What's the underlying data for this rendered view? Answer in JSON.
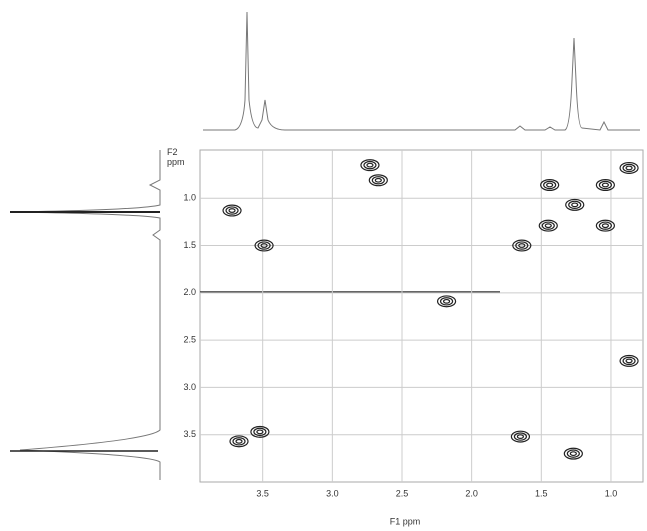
{
  "chart_data": {
    "type": "scatter",
    "xlabel": "F1 ppm",
    "ylabel": "F2 ppm",
    "xlim": [
      3.95,
      0.77
    ],
    "ylim": [
      0.49,
      4.0
    ],
    "xticks": [
      {
        "value": 3.5,
        "label": "3.5"
      },
      {
        "value": 3.0,
        "label": "3.0"
      },
      {
        "value": 2.5,
        "label": "2.5"
      },
      {
        "value": 2.0,
        "label": "2.0"
      },
      {
        "value": 1.5,
        "label": "1.5"
      },
      {
        "value": 1.0,
        "label": "1.0"
      }
    ],
    "yticks": [
      {
        "value": 1.0,
        "label": "1.0"
      },
      {
        "value": 1.5,
        "label": "1.5"
      },
      {
        "value": 2.0,
        "label": "2.0"
      },
      {
        "value": 2.5,
        "label": "2.5"
      },
      {
        "value": 3.0,
        "label": "3.0"
      },
      {
        "value": 3.5,
        "label": "3.5"
      }
    ],
    "grid": true,
    "color": "#222",
    "x": [
      3.72,
      3.49,
      2.73,
      2.67,
      1.44,
      1.26,
      1.04,
      1.04,
      1.45,
      1.64,
      0.87,
      2.18,
      0.87,
      3.67,
      3.52,
      1.65,
      1.27
    ],
    "values": [
      1.13,
      1.5,
      0.65,
      0.81,
      0.86,
      1.07,
      0.86,
      1.29,
      1.29,
      1.5,
      0.68,
      2.09,
      2.72,
      3.57,
      3.47,
      3.52,
      3.7
    ]
  }
}
